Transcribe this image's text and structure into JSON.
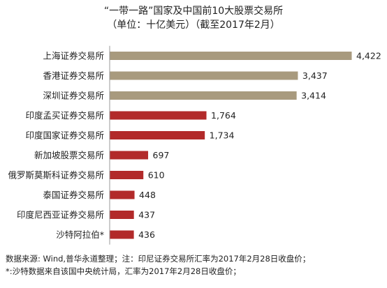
{
  "chart_data": {
    "type": "bar",
    "orientation": "horizontal",
    "title": "“一带一路”国家及中国前10大股票交易所",
    "subtitle": "（单位：十亿美元）（截至2017年2月）",
    "categories": [
      "上海证券交易所",
      "香港证券交易所",
      "深圳证券交易所",
      "印度孟买证券交易所",
      "印度国家证券交易所",
      "新加坡股票交易所",
      "俄罗斯莫斯科证券交易所",
      "泰国证券交易所",
      "印度尼西亚证券交易所",
      "沙特阿拉伯*"
    ],
    "values": [
      4422,
      3437,
      3414,
      1764,
      1734,
      697,
      610,
      448,
      437,
      436
    ],
    "value_labels": [
      "4,422",
      "3,437",
      "3,414",
      "1,764",
      "1,734",
      "697",
      "610",
      "448",
      "437",
      "436"
    ],
    "xlim": [
      0,
      4422
    ],
    "grid": false,
    "legend": "none",
    "colors": {
      "china": "#a89a7e",
      "belt_road": "#b22a2a",
      "axis": "#999999"
    },
    "bar_color_groups": [
      "china",
      "china",
      "china",
      "belt_road",
      "belt_road",
      "belt_road",
      "belt_road",
      "belt_road",
      "belt_road",
      "belt_road"
    ]
  },
  "notes": {
    "line1": "数据来源: Wind,普华永道整理；注：印尼证券交易所汇率为2017年2月28日收盘价；",
    "line2": "*:沙特数据来自该国中央统计局，汇率为2017年2月28日收盘价；"
  }
}
